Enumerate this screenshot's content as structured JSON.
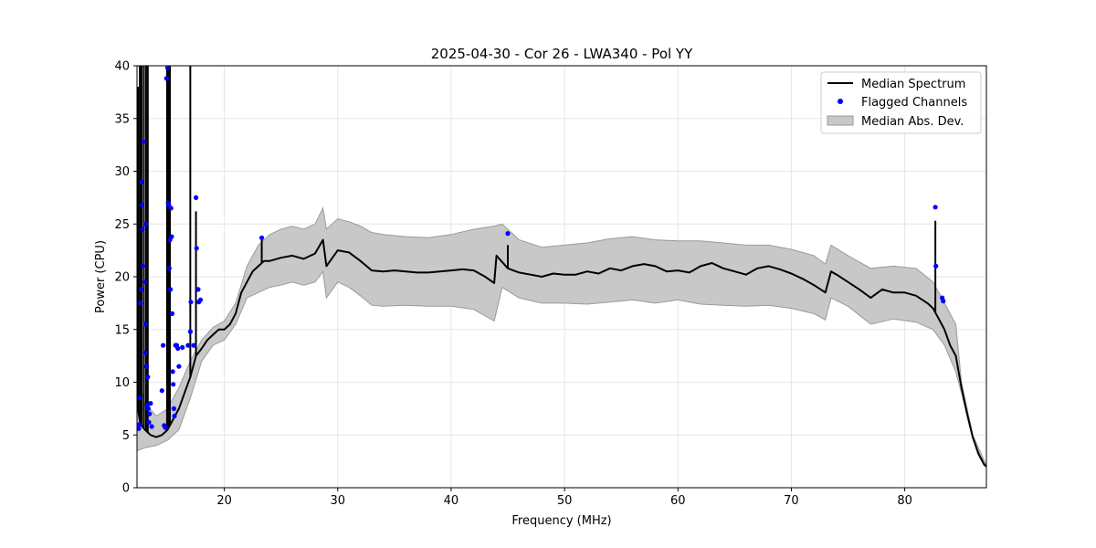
{
  "chart_data": {
    "type": "line",
    "title": "2025-04-30 - Cor 26 - LWA340 - Pol YY",
    "xlabel": "Frequency (MHz)",
    "ylabel": "Power (CPU)",
    "xlim": [
      12.3,
      87.2
    ],
    "ylim": [
      0,
      40
    ],
    "xticks": [
      20,
      30,
      40,
      50,
      60,
      70,
      80
    ],
    "yticks": [
      0,
      5,
      10,
      15,
      20,
      25,
      30,
      35,
      40
    ],
    "grid": true,
    "legend_position": "top-right",
    "legend": [
      {
        "label": "Median Spectrum",
        "kind": "line"
      },
      {
        "label": "Flagged Channels",
        "kind": "marker"
      },
      {
        "label": "Median Abs. Dev.",
        "kind": "band"
      }
    ],
    "colors": {
      "median": "#000000",
      "flagged": "#0000ff",
      "band_fill": "#c8c8c8",
      "band_edge": "#9a9a9a",
      "grid": "#e6e6e6"
    },
    "median": [
      [
        12.3,
        8.0
      ],
      [
        12.6,
        6.0
      ],
      [
        13.0,
        5.5
      ],
      [
        13.5,
        5.0
      ],
      [
        14.0,
        4.8
      ],
      [
        14.5,
        5.0
      ],
      [
        15.0,
        5.5
      ],
      [
        15.5,
        6.5
      ],
      [
        16.0,
        7.5
      ],
      [
        16.5,
        9.0
      ],
      [
        17.0,
        10.5
      ],
      [
        17.5,
        12.5
      ],
      [
        18.0,
        13.2
      ],
      [
        18.5,
        14.0
      ],
      [
        19.0,
        14.5
      ],
      [
        19.5,
        15.0
      ],
      [
        20.0,
        15.0
      ],
      [
        20.5,
        15.5
      ],
      [
        21.0,
        16.5
      ],
      [
        21.5,
        18.5
      ],
      [
        22.0,
        19.5
      ],
      [
        22.5,
        20.5
      ],
      [
        23.0,
        21.0
      ],
      [
        23.5,
        21.5
      ],
      [
        24.0,
        21.5
      ],
      [
        25.0,
        21.8
      ],
      [
        26.0,
        22.0
      ],
      [
        27.0,
        21.7
      ],
      [
        28.0,
        22.2
      ],
      [
        28.7,
        23.5
      ],
      [
        29.0,
        21.0
      ],
      [
        30.0,
        22.5
      ],
      [
        31.0,
        22.3
      ],
      [
        32.0,
        21.5
      ],
      [
        33.0,
        20.6
      ],
      [
        34.0,
        20.5
      ],
      [
        35.0,
        20.6
      ],
      [
        36.0,
        20.5
      ],
      [
        37.0,
        20.4
      ],
      [
        38.0,
        20.4
      ],
      [
        39.0,
        20.5
      ],
      [
        40.0,
        20.6
      ],
      [
        41.0,
        20.7
      ],
      [
        42.0,
        20.6
      ],
      [
        43.0,
        20.0
      ],
      [
        43.8,
        19.4
      ],
      [
        44.0,
        22.0
      ],
      [
        45.0,
        20.8
      ],
      [
        46.0,
        20.4
      ],
      [
        47.0,
        20.2
      ],
      [
        48.0,
        20.0
      ],
      [
        49.0,
        20.3
      ],
      [
        50.0,
        20.2
      ],
      [
        51.0,
        20.2
      ],
      [
        52.0,
        20.5
      ],
      [
        53.0,
        20.3
      ],
      [
        54.0,
        20.8
      ],
      [
        55.0,
        20.6
      ],
      [
        56.0,
        21.0
      ],
      [
        57.0,
        21.2
      ],
      [
        58.0,
        21.0
      ],
      [
        59.0,
        20.5
      ],
      [
        60.0,
        20.6
      ],
      [
        61.0,
        20.4
      ],
      [
        62.0,
        21.0
      ],
      [
        63.0,
        21.3
      ],
      [
        64.0,
        20.8
      ],
      [
        65.0,
        20.5
      ],
      [
        66.0,
        20.2
      ],
      [
        67.0,
        20.8
      ],
      [
        68.0,
        21.0
      ],
      [
        69.0,
        20.7
      ],
      [
        70.0,
        20.3
      ],
      [
        71.0,
        19.8
      ],
      [
        72.0,
        19.2
      ],
      [
        73.0,
        18.5
      ],
      [
        73.5,
        20.5
      ],
      [
        74.0,
        20.2
      ],
      [
        75.0,
        19.5
      ],
      [
        76.0,
        18.8
      ],
      [
        77.0,
        18.0
      ],
      [
        78.0,
        18.8
      ],
      [
        79.0,
        18.5
      ],
      [
        80.0,
        18.5
      ],
      [
        81.0,
        18.2
      ],
      [
        82.0,
        17.5
      ],
      [
        82.5,
        17.0
      ],
      [
        83.0,
        16.0
      ],
      [
        83.5,
        15.0
      ],
      [
        84.0,
        13.5
      ],
      [
        84.5,
        12.5
      ],
      [
        85.0,
        9.5
      ],
      [
        85.5,
        7.0
      ],
      [
        86.0,
        4.8
      ],
      [
        86.5,
        3.2
      ],
      [
        87.0,
        2.2
      ],
      [
        87.2,
        2.0
      ]
    ],
    "median_spikes": [
      [
        12.4,
        38.0
      ],
      [
        12.55,
        40.0
      ],
      [
        12.7,
        40.0
      ],
      [
        12.9,
        40.0
      ],
      [
        13.1,
        40.0
      ],
      [
        13.25,
        40.0
      ],
      [
        14.95,
        40.0
      ],
      [
        15.05,
        40.0
      ],
      [
        15.2,
        40.0
      ],
      [
        17.0,
        40.0
      ],
      [
        17.5,
        26.2
      ],
      [
        23.3,
        23.5
      ],
      [
        45.0,
        23.0
      ],
      [
        82.7,
        25.3
      ]
    ],
    "mad_upper": [
      [
        12.3,
        10.5
      ],
      [
        13.0,
        8.0
      ],
      [
        14.0,
        6.8
      ],
      [
        15.0,
        7.5
      ],
      [
        16.0,
        9.5
      ],
      [
        17.0,
        12.0
      ],
      [
        18.0,
        14.0
      ],
      [
        19.0,
        15.2
      ],
      [
        20.0,
        15.8
      ],
      [
        21.0,
        17.5
      ],
      [
        22.0,
        21.0
      ],
      [
        23.0,
        23.0
      ],
      [
        24.0,
        24.0
      ],
      [
        25.0,
        24.5
      ],
      [
        26.0,
        24.8
      ],
      [
        27.0,
        24.5
      ],
      [
        28.0,
        25.0
      ],
      [
        28.7,
        26.5
      ],
      [
        29.0,
        24.5
      ],
      [
        30.0,
        25.5
      ],
      [
        31.0,
        25.2
      ],
      [
        32.0,
        24.8
      ],
      [
        33.0,
        24.2
      ],
      [
        34.0,
        24.0
      ],
      [
        36.0,
        23.8
      ],
      [
        38.0,
        23.7
      ],
      [
        40.0,
        24.0
      ],
      [
        42.0,
        24.5
      ],
      [
        43.8,
        24.8
      ],
      [
        44.5,
        25.0
      ],
      [
        46.0,
        23.5
      ],
      [
        48.0,
        22.8
      ],
      [
        50.0,
        23.0
      ],
      [
        52.0,
        23.2
      ],
      [
        54.0,
        23.6
      ],
      [
        56.0,
        23.8
      ],
      [
        58.0,
        23.5
      ],
      [
        60.0,
        23.4
      ],
      [
        62.0,
        23.4
      ],
      [
        64.0,
        23.2
      ],
      [
        66.0,
        23.0
      ],
      [
        68.0,
        23.0
      ],
      [
        70.0,
        22.6
      ],
      [
        72.0,
        22.0
      ],
      [
        73.0,
        21.2
      ],
      [
        73.5,
        23.0
      ],
      [
        75.0,
        22.0
      ],
      [
        77.0,
        20.8
      ],
      [
        79.0,
        21.0
      ],
      [
        81.0,
        20.8
      ],
      [
        82.5,
        19.5
      ],
      [
        83.5,
        17.5
      ],
      [
        84.5,
        15.5
      ],
      [
        85.0,
        10.0
      ],
      [
        86.0,
        5.0
      ],
      [
        87.2,
        2.1
      ]
    ],
    "mad_lower": [
      [
        12.3,
        3.5
      ],
      [
        13.0,
        3.8
      ],
      [
        14.0,
        4.0
      ],
      [
        15.0,
        4.5
      ],
      [
        16.0,
        5.5
      ],
      [
        17.0,
        8.5
      ],
      [
        18.0,
        12.0
      ],
      [
        19.0,
        13.5
      ],
      [
        20.0,
        14.0
      ],
      [
        21.0,
        15.5
      ],
      [
        22.0,
        18.0
      ],
      [
        23.0,
        18.5
      ],
      [
        24.0,
        19.0
      ],
      [
        25.0,
        19.2
      ],
      [
        26.0,
        19.5
      ],
      [
        27.0,
        19.2
      ],
      [
        28.0,
        19.5
      ],
      [
        28.7,
        20.5
      ],
      [
        29.0,
        18.0
      ],
      [
        30.0,
        19.5
      ],
      [
        31.0,
        19.0
      ],
      [
        32.0,
        18.2
      ],
      [
        33.0,
        17.3
      ],
      [
        34.0,
        17.2
      ],
      [
        36.0,
        17.3
      ],
      [
        38.0,
        17.2
      ],
      [
        40.0,
        17.2
      ],
      [
        42.0,
        16.9
      ],
      [
        43.8,
        15.8
      ],
      [
        44.5,
        19.0
      ],
      [
        46.0,
        18.0
      ],
      [
        48.0,
        17.5
      ],
      [
        50.0,
        17.5
      ],
      [
        52.0,
        17.4
      ],
      [
        54.0,
        17.6
      ],
      [
        56.0,
        17.8
      ],
      [
        58.0,
        17.5
      ],
      [
        60.0,
        17.8
      ],
      [
        62.0,
        17.4
      ],
      [
        64.0,
        17.3
      ],
      [
        66.0,
        17.2
      ],
      [
        68.0,
        17.3
      ],
      [
        70.0,
        17.0
      ],
      [
        72.0,
        16.5
      ],
      [
        73.0,
        15.9
      ],
      [
        73.5,
        18.0
      ],
      [
        75.0,
        17.2
      ],
      [
        77.0,
        15.5
      ],
      [
        79.0,
        16.0
      ],
      [
        81.0,
        15.7
      ],
      [
        82.5,
        15.0
      ],
      [
        83.5,
        13.5
      ],
      [
        84.5,
        11.0
      ],
      [
        85.0,
        9.0
      ],
      [
        86.0,
        4.6
      ],
      [
        87.2,
        1.9
      ]
    ],
    "flagged": [
      [
        12.45,
        5.6
      ],
      [
        12.5,
        6.0
      ],
      [
        12.55,
        8.5
      ],
      [
        12.6,
        17.5
      ],
      [
        12.65,
        18.8
      ],
      [
        12.7,
        29.0
      ],
      [
        12.75,
        26.8
      ],
      [
        12.8,
        24.5
      ],
      [
        12.85,
        21.0
      ],
      [
        12.9,
        32.8
      ],
      [
        12.95,
        19.5
      ],
      [
        13.0,
        12.8
      ],
      [
        13.05,
        15.5
      ],
      [
        13.1,
        25.0
      ],
      [
        13.15,
        11.5
      ],
      [
        13.2,
        7.8
      ],
      [
        13.25,
        10.5
      ],
      [
        13.3,
        7.5
      ],
      [
        13.35,
        6.2
      ],
      [
        13.4,
        7.0
      ],
      [
        13.5,
        8.0
      ],
      [
        13.6,
        5.8
      ],
      [
        14.5,
        9.2
      ],
      [
        14.6,
        13.5
      ],
      [
        14.7,
        5.9
      ],
      [
        14.8,
        5.7
      ],
      [
        14.9,
        38.8
      ],
      [
        15.0,
        39.8
      ],
      [
        15.05,
        27.0
      ],
      [
        15.1,
        26.8
      ],
      [
        15.15,
        20.8
      ],
      [
        15.2,
        23.5
      ],
      [
        15.25,
        18.8
      ],
      [
        15.3,
        26.5
      ],
      [
        15.35,
        23.8
      ],
      [
        15.4,
        16.5
      ],
      [
        15.45,
        11.0
      ],
      [
        15.5,
        9.8
      ],
      [
        15.55,
        7.5
      ],
      [
        15.6,
        6.8
      ],
      [
        15.7,
        13.5
      ],
      [
        15.8,
        13.5
      ],
      [
        15.9,
        13.2
      ],
      [
        16.0,
        11.5
      ],
      [
        16.3,
        13.3
      ],
      [
        16.8,
        13.5
      ],
      [
        17.0,
        14.8
      ],
      [
        17.05,
        17.6
      ],
      [
        17.3,
        13.5
      ],
      [
        17.5,
        27.5
      ],
      [
        17.55,
        22.7
      ],
      [
        17.7,
        18.8
      ],
      [
        17.75,
        17.6
      ],
      [
        17.9,
        17.8
      ],
      [
        23.3,
        23.7
      ],
      [
        45.0,
        24.1
      ],
      [
        82.7,
        26.6
      ],
      [
        82.75,
        21.0
      ],
      [
        83.3,
        18.0
      ],
      [
        83.4,
        17.7
      ]
    ]
  }
}
